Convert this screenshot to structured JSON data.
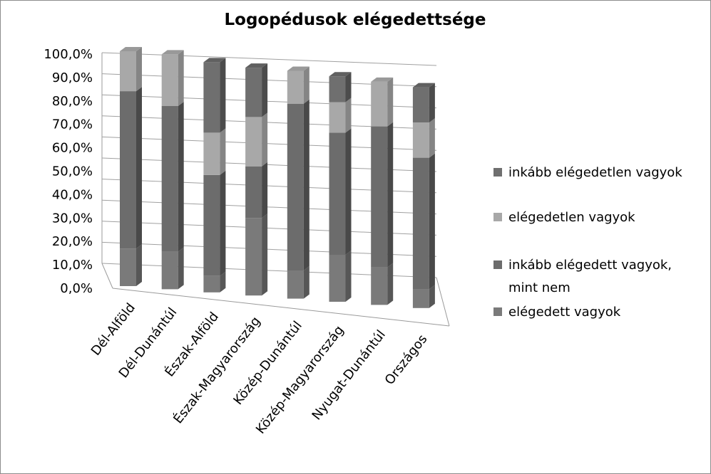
{
  "chart_data": {
    "type": "bar",
    "stacked": true,
    "three_d": true,
    "title": "Logopédusok elégedettsége",
    "categories": [
      "Dél-Alföld",
      "Dél-Dunántúl",
      "Észak-Alföld",
      "Észak-Magyarország",
      "Közép-Dunántúl",
      "Közép-Magyarország",
      "Nyugat-Dunántúl",
      "Országos"
    ],
    "series": [
      {
        "name": "elégedett vagyok",
        "values": [
          16.0,
          16.0,
          7.0,
          33.0,
          12.0,
          20.0,
          16.0,
          8.0
        ],
        "color": "#7a7a7a"
      },
      {
        "name": "inkább elégedett vagyok, mint nem",
        "values": [
          67.0,
          62.0,
          43.0,
          22.0,
          71.0,
          52.0,
          60.0,
          56.0
        ],
        "color": "#6c6c6c"
      },
      {
        "name": "elégedetlen vagyok",
        "values": [
          17.0,
          22.0,
          18.0,
          21.0,
          14.0,
          13.0,
          19.0,
          15.0
        ],
        "color": "#a8a8a8"
      },
      {
        "name": "inkább elégedetlen vagyok",
        "values": [
          0.0,
          0.0,
          30.0,
          21.0,
          0.0,
          11.0,
          0.0,
          15.0
        ],
        "color": "#6f6f6f"
      }
    ],
    "ylim": [
      0,
      100
    ],
    "yticks": [
      "0,0%",
      "10,0%",
      "20,0%",
      "30,0%",
      "40,0%",
      "50,0%",
      "60,0%",
      "70,0%",
      "80,0%",
      "90,0%",
      "100,0%"
    ],
    "grid": true,
    "legend_position": "right",
    "legend_order": [
      "inkább elégedetlen vagyok",
      "elégedetlen vagyok",
      "inkább elégedett vagyok, mint nem",
      "elégedett vagyok"
    ]
  }
}
